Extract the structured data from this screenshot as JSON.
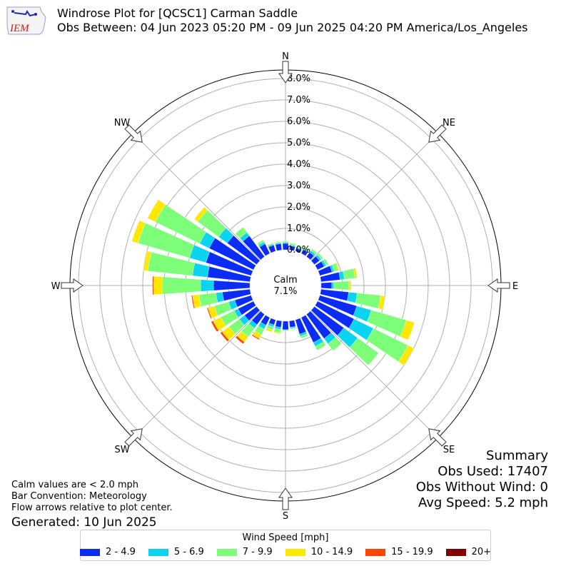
{
  "logo": {
    "text": "IEM"
  },
  "header": {
    "title": "Windrose Plot for [QCSC1] Carman Saddle",
    "subtitle": "Obs Between: 04 Jun 2023 05:20 PM - 09 Jun 2025 04:20 PM America/Los_Angeles"
  },
  "calm": {
    "label": "Calm",
    "value": "7.1%"
  },
  "summary": {
    "heading": "Summary",
    "obs_used": "Obs Used: 17407",
    "obs_without_wind": "Obs Without Wind: 0",
    "avg_speed": "Avg Speed: 5.2 mph"
  },
  "notes": {
    "calm_note": "Calm values are < 2.0 mph",
    "bar_convention": "Bar Convention: Meteorology",
    "flow_arrows": "Flow arrows relative to plot center.",
    "generated": "Generated: 10 Jun 2025"
  },
  "legend": {
    "title": "Wind Speed [mph]",
    "items": [
      {
        "label": "2 - 4.9",
        "color": "#0a2cf5"
      },
      {
        "label": "5 - 6.9",
        "color": "#0ad4f0"
      },
      {
        "label": "7 - 9.9",
        "color": "#7dff7a"
      },
      {
        "label": "10 - 14.9",
        "color": "#ffe800"
      },
      {
        "label": "15 - 19.9",
        "color": "#ff4500"
      },
      {
        "label": "20+",
        "color": "#800000"
      }
    ]
  },
  "chart_data": {
    "type": "windrose",
    "radial_unit": "%",
    "radial_ticks": [
      "0.0%",
      "1.0%",
      "2.0%",
      "3.0%",
      "4.0%",
      "5.0%",
      "6.0%",
      "7.0%",
      "8.0%"
    ],
    "rmax": 8.4,
    "directions": [
      "N",
      "NE",
      "E",
      "SE",
      "S",
      "SW",
      "W",
      "NW"
    ],
    "calm_percent": 7.1,
    "speed_bins": [
      "2 - 4.9",
      "5 - 6.9",
      "7 - 9.9",
      "10 - 14.9",
      "15 - 19.9",
      "20+"
    ],
    "bin_colors": [
      "#0a2cf5",
      "#0ad4f0",
      "#7dff7a",
      "#ffe800",
      "#ff4500",
      "#800000"
    ],
    "sectors": [
      {
        "dir_deg": 0,
        "values": [
          0.3,
          0.05,
          0.05,
          0.0,
          0.0,
          0.0
        ]
      },
      {
        "dir_deg": 10,
        "values": [
          0.2,
          0.05,
          0.08,
          0.0,
          0.0,
          0.0
        ]
      },
      {
        "dir_deg": 20,
        "values": [
          0.15,
          0.05,
          0.08,
          0.0,
          0.0,
          0.0
        ]
      },
      {
        "dir_deg": 30,
        "values": [
          0.2,
          0.05,
          0.08,
          0.0,
          0.0,
          0.0
        ]
      },
      {
        "dir_deg": 40,
        "values": [
          0.25,
          0.1,
          0.1,
          0.0,
          0.0,
          0.0
        ]
      },
      {
        "dir_deg": 50,
        "values": [
          0.3,
          0.1,
          0.1,
          0.0,
          0.0,
          0.0
        ]
      },
      {
        "dir_deg": 60,
        "values": [
          0.35,
          0.1,
          0.12,
          0.0,
          0.0,
          0.0
        ]
      },
      {
        "dir_deg": 70,
        "values": [
          0.6,
          0.1,
          0.2,
          0.05,
          0.0,
          0.0
        ]
      },
      {
        "dir_deg": 80,
        "values": [
          0.9,
          0.2,
          0.5,
          0.1,
          0.0,
          0.0
        ]
      },
      {
        "dir_deg": 90,
        "values": [
          0.5,
          0.1,
          0.7,
          0.1,
          0.0,
          0.0
        ]
      },
      {
        "dir_deg": 100,
        "values": [
          1.3,
          0.4,
          1.1,
          0.2,
          0.0,
          0.0
        ]
      },
      {
        "dir_deg": 110,
        "values": [
          1.8,
          0.7,
          1.7,
          0.4,
          0.0,
          0.0
        ]
      },
      {
        "dir_deg": 120,
        "values": [
          1.9,
          1.0,
          1.8,
          0.3,
          0.0,
          0.0
        ]
      },
      {
        "dir_deg": 130,
        "values": [
          1.7,
          0.8,
          1.2,
          0.0,
          0.0,
          0.0
        ]
      },
      {
        "dir_deg": 140,
        "values": [
          1.4,
          0.3,
          0.4,
          0.0,
          0.0,
          0.0
        ]
      },
      {
        "dir_deg": 150,
        "values": [
          1.3,
          0.2,
          0.2,
          0.0,
          0.0,
          0.0
        ]
      },
      {
        "dir_deg": 160,
        "values": [
          0.7,
          0.1,
          0.1,
          0.0,
          0.0,
          0.0
        ]
      },
      {
        "dir_deg": 170,
        "values": [
          0.3,
          0.05,
          0.05,
          0.0,
          0.0,
          0.0
        ]
      },
      {
        "dir_deg": 180,
        "values": [
          0.4,
          0.0,
          0.05,
          0.0,
          0.0,
          0.0
        ]
      },
      {
        "dir_deg": 190,
        "values": [
          0.3,
          0.1,
          0.15,
          0.05,
          0.0,
          0.0
        ]
      },
      {
        "dir_deg": 200,
        "values": [
          0.25,
          0.1,
          0.15,
          0.1,
          0.0,
          0.0
        ]
      },
      {
        "dir_deg": 210,
        "values": [
          0.4,
          0.2,
          0.3,
          0.2,
          0.05,
          0.0
        ]
      },
      {
        "dir_deg": 220,
        "values": [
          0.6,
          0.2,
          0.5,
          0.3,
          0.1,
          0.0
        ]
      },
      {
        "dir_deg": 230,
        "values": [
          0.7,
          0.3,
          0.6,
          0.4,
          0.1,
          0.0
        ]
      },
      {
        "dir_deg": 240,
        "values": [
          0.8,
          0.2,
          0.7,
          0.4,
          0.1,
          0.0
        ]
      },
      {
        "dir_deg": 250,
        "values": [
          0.8,
          0.3,
          0.7,
          0.3,
          0.05,
          0.0
        ]
      },
      {
        "dir_deg": 260,
        "values": [
          1.3,
          0.3,
          0.8,
          0.3,
          0.05,
          0.0
        ]
      },
      {
        "dir_deg": 270,
        "values": [
          1.7,
          0.6,
          1.8,
          0.4,
          0.05,
          0.0
        ]
      },
      {
        "dir_deg": 280,
        "values": [
          2.0,
          0.7,
          2.1,
          0.2,
          0.0,
          0.0
        ]
      },
      {
        "dir_deg": 290,
        "values": [
          2.2,
          0.8,
          2.5,
          0.3,
          0.0,
          0.0
        ]
      },
      {
        "dir_deg": 300,
        "values": [
          2.3,
          0.5,
          2.3,
          0.4,
          0.0,
          0.0
        ]
      },
      {
        "dir_deg": 310,
        "values": [
          1.7,
          0.5,
          1.2,
          0.2,
          0.0,
          0.0
        ]
      },
      {
        "dir_deg": 320,
        "values": [
          1.2,
          0.2,
          0.3,
          0.0,
          0.0,
          0.0
        ]
      },
      {
        "dir_deg": 330,
        "values": [
          0.5,
          0.1,
          0.1,
          0.0,
          0.0,
          0.0
        ]
      },
      {
        "dir_deg": 340,
        "values": [
          0.3,
          0.05,
          0.05,
          0.0,
          0.0,
          0.0
        ]
      },
      {
        "dir_deg": 350,
        "values": [
          0.3,
          0.05,
          0.05,
          0.0,
          0.0,
          0.0
        ]
      }
    ]
  }
}
